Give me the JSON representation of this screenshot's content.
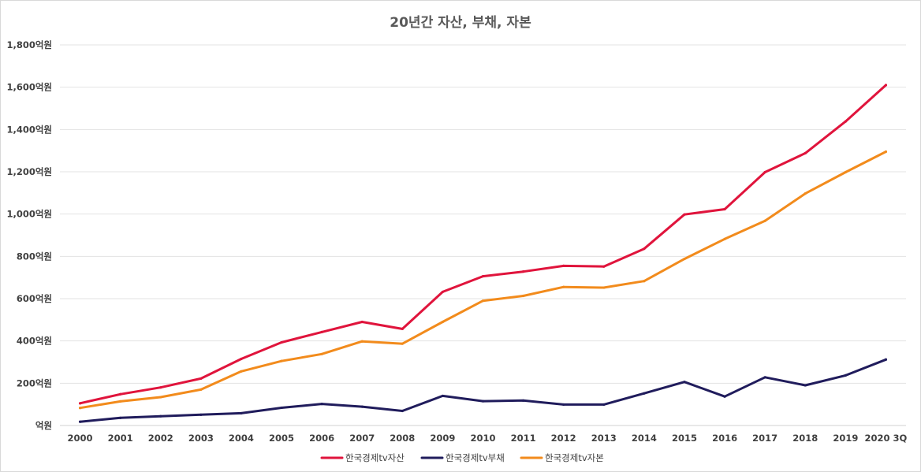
{
  "chart_data": {
    "type": "line",
    "title": "20년간 자산, 부채, 자본",
    "xlabel": "",
    "ylabel": "",
    "ylim": [
      0,
      1800
    ],
    "y_unit_suffix": "억원",
    "y_ticks": [
      0,
      200,
      400,
      600,
      800,
      1000,
      1200,
      1400,
      1600,
      1800
    ],
    "y_tick_labels": [
      "억원",
      "200억원",
      "400억원",
      "600억원",
      "800억원",
      "1,000억원",
      "1,200억원",
      "1,400억원",
      "1,600억원",
      "1,800억원"
    ],
    "grid": true,
    "legend_position": "bottom",
    "categories": [
      "2000",
      "2001",
      "2002",
      "2003",
      "2004",
      "2005",
      "2006",
      "2007",
      "2008",
      "2009",
      "2010",
      "2011",
      "2012",
      "2013",
      "2014",
      "2015",
      "2016",
      "2017",
      "2018",
      "2019",
      "2020 3Q"
    ],
    "series": [
      {
        "name": "한국경제tv자산",
        "color": "#e0143c",
        "values": [
          105,
          148,
          180,
          222,
          315,
          393,
          442,
          490,
          457,
          632,
          706,
          728,
          755,
          752,
          836,
          998,
          1023,
          1198,
          1288,
          1438,
          1610
        ]
      },
      {
        "name": "한국경제tv부채",
        "color": "#201c5c",
        "values": [
          18,
          36,
          44,
          51,
          58,
          84,
          102,
          89,
          69,
          140,
          115,
          118,
          99,
          99,
          152,
          206,
          137,
          228,
          190,
          237,
          312
        ]
      },
      {
        "name": "한국경제tv자본",
        "color": "#f28b1c",
        "values": [
          83,
          114,
          134,
          170,
          256,
          305,
          338,
          398,
          387,
          490,
          590,
          613,
          655,
          652,
          683,
          788,
          882,
          968,
          1097,
          1198,
          1295
        ]
      }
    ]
  }
}
